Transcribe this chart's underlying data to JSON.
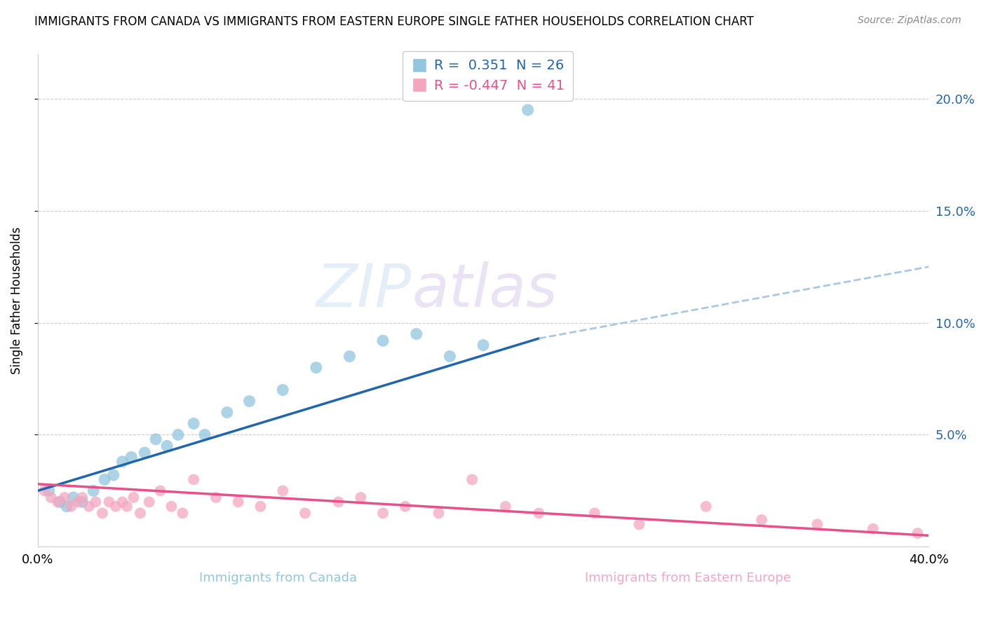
{
  "title": "IMMIGRANTS FROM CANADA VS IMMIGRANTS FROM EASTERN EUROPE SINGLE FATHER HOUSEHOLDS CORRELATION CHART",
  "source": "Source: ZipAtlas.com",
  "ylabel": "Single Father Households",
  "xlabel_canada": "Immigrants from Canada",
  "xlabel_eastern": "Immigrants from Eastern Europe",
  "xlim": [
    0.0,
    0.4
  ],
  "ylim": [
    0.0,
    0.22
  ],
  "yticks": [
    0.05,
    0.1,
    0.15,
    0.2
  ],
  "ytick_labels": [
    "5.0%",
    "10.0%",
    "15.0%",
    "20.0%"
  ],
  "xtick_labels": [
    "0.0%",
    "",
    "",
    "",
    "40.0%"
  ],
  "R_canada": 0.351,
  "N_canada": 26,
  "R_eastern": -0.447,
  "N_eastern": 41,
  "color_canada": "#92c5de",
  "color_eastern": "#f4a6bf",
  "line_color_canada": "#2166ac",
  "line_color_eastern": "#e8508a",
  "line_color_canada_ext": "#aac8e0",
  "watermark_zip": "ZIP",
  "watermark_atlas": "atlas",
  "canada_x": [
    0.005,
    0.01,
    0.013,
    0.016,
    0.02,
    0.025,
    0.03,
    0.034,
    0.038,
    0.042,
    0.048,
    0.053,
    0.058,
    0.063,
    0.07,
    0.075,
    0.085,
    0.095,
    0.11,
    0.125,
    0.14,
    0.155,
    0.17,
    0.185,
    0.2,
    0.22
  ],
  "canada_y": [
    0.025,
    0.02,
    0.018,
    0.022,
    0.02,
    0.025,
    0.03,
    0.032,
    0.038,
    0.04,
    0.042,
    0.048,
    0.045,
    0.05,
    0.055,
    0.05,
    0.06,
    0.065,
    0.07,
    0.08,
    0.085,
    0.092,
    0.095,
    0.085,
    0.09,
    0.195
  ],
  "eastern_x": [
    0.003,
    0.006,
    0.009,
    0.012,
    0.015,
    0.018,
    0.02,
    0.023,
    0.026,
    0.029,
    0.032,
    0.035,
    0.038,
    0.04,
    0.043,
    0.046,
    0.05,
    0.055,
    0.06,
    0.065,
    0.07,
    0.08,
    0.09,
    0.1,
    0.11,
    0.12,
    0.135,
    0.145,
    0.155,
    0.165,
    0.18,
    0.195,
    0.21,
    0.225,
    0.25,
    0.27,
    0.3,
    0.325,
    0.35,
    0.375,
    0.395
  ],
  "eastern_y": [
    0.025,
    0.022,
    0.02,
    0.022,
    0.018,
    0.02,
    0.022,
    0.018,
    0.02,
    0.015,
    0.02,
    0.018,
    0.02,
    0.018,
    0.022,
    0.015,
    0.02,
    0.025,
    0.018,
    0.015,
    0.03,
    0.022,
    0.02,
    0.018,
    0.025,
    0.015,
    0.02,
    0.022,
    0.015,
    0.018,
    0.015,
    0.03,
    0.018,
    0.015,
    0.015,
    0.01,
    0.018,
    0.012,
    0.01,
    0.008,
    0.006
  ],
  "canada_line_x0": 0.0,
  "canada_line_x_solid_end": 0.225,
  "canada_line_x_dash_end": 0.4,
  "canada_line_y0": 0.025,
  "canada_line_yend_solid": 0.093,
  "canada_line_yend_dash": 0.125,
  "eastern_line_x0": 0.0,
  "eastern_line_xend": 0.4,
  "eastern_line_y0": 0.028,
  "eastern_line_yend": 0.005
}
